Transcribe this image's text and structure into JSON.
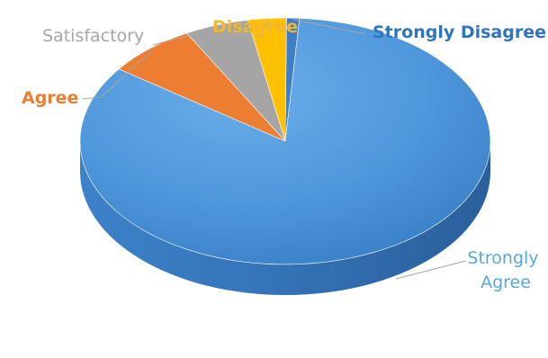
{
  "chart_data": {
    "type": "pie",
    "style": "3d",
    "title": "",
    "legend": "none",
    "slices": [
      {
        "key": "strongly_agree",
        "label_lines": [
          "Strongly",
          "Agree"
        ],
        "value": 83,
        "color": "#4f97dc",
        "label_color": "#5aa6df"
      },
      {
        "key": "agree",
        "label_lines": [
          "Agree"
        ],
        "value": 7,
        "color": "#ed7d31",
        "label_color": "#ed7d31"
      },
      {
        "key": "satisfactory",
        "label_lines": [
          "Satisfactory"
        ],
        "value": 5,
        "color": "#a5a5a5",
        "label_color": "#a6a6a6"
      },
      {
        "key": "disagree",
        "label_lines": [
          "Disagree"
        ],
        "value": 3,
        "color": "#ffc000",
        "label_color": "#f0b72f"
      },
      {
        "key": "strongly_disagree",
        "label_lines": [
          "Strongly Disagree"
        ],
        "value": 1,
        "color": "#3f7ec7",
        "label_color": "#2e74c0"
      }
    ]
  }
}
